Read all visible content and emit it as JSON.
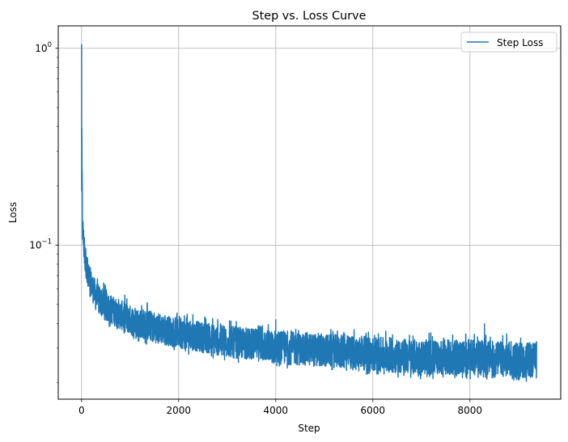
{
  "chart_data": {
    "type": "line",
    "title": "Step vs. Loss Curve",
    "xlabel": "Step",
    "ylabel": "Loss",
    "xscale": "linear",
    "yscale": "log",
    "xlim": [
      -480,
      9870
    ],
    "ylim": [
      0.0165,
      1.3
    ],
    "xticks": [
      0,
      2000,
      4000,
      6000,
      8000
    ],
    "xtick_labels": [
      "0",
      "2000",
      "4000",
      "6000",
      "8000"
    ],
    "yticks": [
      1,
      0.1
    ],
    "ytick_labels": [
      {
        "base": "10",
        "exp": "0"
      },
      {
        "base": "10",
        "exp": "−1"
      }
    ],
    "grid": true,
    "legend": {
      "position": "upper right",
      "entries": [
        "Step Loss"
      ]
    },
    "series": [
      {
        "name": "Step Loss",
        "color": "#1f77b4",
        "n_steps": 9375,
        "note": "noisy per-step loss; approximate envelope (lower, mean, upper) sampled at steps",
        "envelope": [
          {
            "step": 0,
            "low": 0.13,
            "mean": 0.5,
            "high": 1.05
          },
          {
            "step": 20,
            "low": 0.1,
            "mean": 0.13,
            "high": 0.17
          },
          {
            "step": 60,
            "low": 0.075,
            "mean": 0.09,
            "high": 0.11
          },
          {
            "step": 150,
            "low": 0.058,
            "mean": 0.068,
            "high": 0.08
          },
          {
            "step": 300,
            "low": 0.046,
            "mean": 0.055,
            "high": 0.078
          },
          {
            "step": 500,
            "low": 0.041,
            "mean": 0.049,
            "high": 0.063
          },
          {
            "step": 1000,
            "low": 0.035,
            "mean": 0.042,
            "high": 0.054
          },
          {
            "step": 1500,
            "low": 0.032,
            "mean": 0.039,
            "high": 0.05
          },
          {
            "step": 2000,
            "low": 0.03,
            "mean": 0.036,
            "high": 0.046
          },
          {
            "step": 3000,
            "low": 0.027,
            "mean": 0.033,
            "high": 0.042
          },
          {
            "step": 4000,
            "low": 0.025,
            "mean": 0.031,
            "high": 0.04
          },
          {
            "step": 5000,
            "low": 0.024,
            "mean": 0.03,
            "high": 0.038
          },
          {
            "step": 6000,
            "low": 0.023,
            "mean": 0.029,
            "high": 0.037
          },
          {
            "step": 7000,
            "low": 0.022,
            "mean": 0.028,
            "high": 0.036
          },
          {
            "step": 8000,
            "low": 0.022,
            "mean": 0.028,
            "high": 0.036
          },
          {
            "step": 9375,
            "low": 0.021,
            "mean": 0.027,
            "high": 0.035
          }
        ],
        "notable_points": [
          {
            "step": 0,
            "loss": 1.05
          },
          {
            "step": 4000,
            "loss": 0.042
          },
          {
            "step": 8300,
            "loss": 0.04
          }
        ]
      }
    ]
  }
}
